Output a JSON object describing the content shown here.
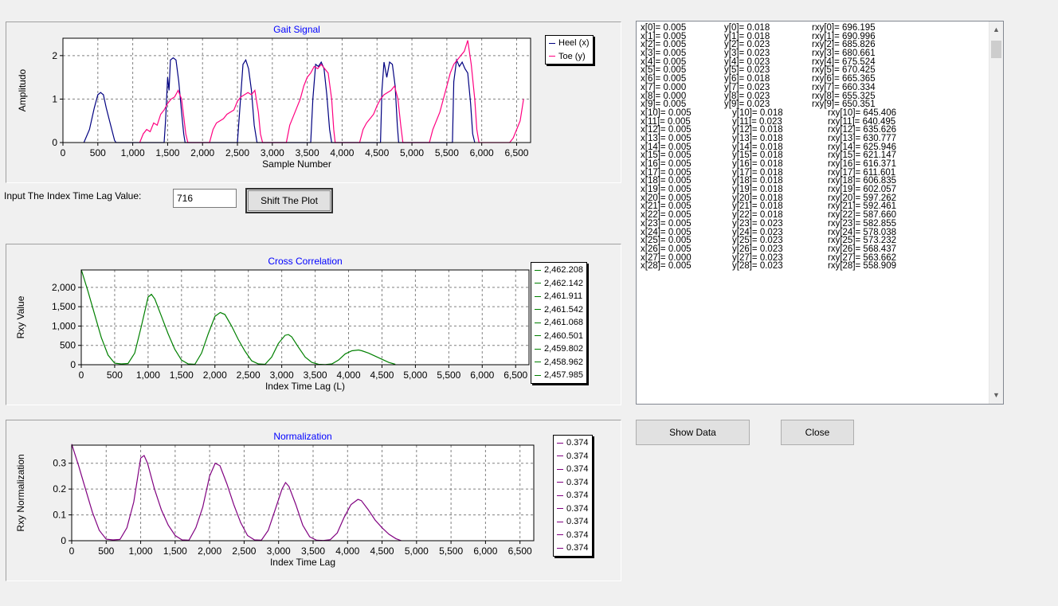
{
  "charts": [
    {
      "title": "Gait Signal",
      "xlabel": "Sample Number",
      "ylabel": "Amplitudo",
      "xticks": [
        "0",
        "500",
        "1,000",
        "1,500",
        "2,000",
        "2,500",
        "3,000",
        "3,500",
        "4,000",
        "4,500",
        "5,000",
        "5,500",
        "6,000",
        "6,500"
      ],
      "yticks": [
        "0",
        "1",
        "2"
      ],
      "legend": [
        {
          "label": "Heel (x)",
          "color": "#000080"
        },
        {
          "label": "Toe (y)",
          "color": "#ff0080"
        }
      ]
    },
    {
      "title": "Cross Correlation",
      "xlabel": "Index Time Lag (L)",
      "ylabel": "Rxy Value",
      "xticks": [
        "0",
        "500",
        "1,000",
        "1,500",
        "2,000",
        "2,500",
        "3,000",
        "3,500",
        "4,000",
        "4,500",
        "5,000",
        "5,500",
        "6,000",
        "6,500"
      ],
      "yticks": [
        "0",
        "500",
        "1,000",
        "1,500",
        "2,000"
      ],
      "legend_color": "#008000",
      "legend": [
        "2,462.208",
        "2,462.142",
        "2,461.911",
        "2,461.542",
        "2,461.068",
        "2,460.501",
        "2,459.802",
        "2,458.962",
        "2,457.985"
      ]
    },
    {
      "title": "Normalization",
      "xlabel": "Index Time Lag",
      "ylabel": "Rxy Normalization",
      "xticks": [
        "0",
        "500",
        "1,000",
        "1,500",
        "2,000",
        "2,500",
        "3,000",
        "3,500",
        "4,000",
        "4,500",
        "5,000",
        "5,500",
        "6,000",
        "6,500"
      ],
      "yticks": [
        "0",
        "0.1",
        "0.2",
        "0.3"
      ],
      "legend_color": "#800080",
      "legend": [
        "0.374",
        "0.374",
        "0.374",
        "0.374",
        "0.374",
        "0.374",
        "0.374",
        "0.374",
        "0.374"
      ]
    }
  ],
  "chart_data": [
    {
      "type": "line",
      "title": "Gait Signal",
      "xlabel": "Sample Number",
      "ylabel": "Amplitudo",
      "xlim": [
        0,
        6700
      ],
      "ylim": [
        0,
        2.4
      ],
      "grid": true,
      "legend_position": "top-right",
      "series": [
        {
          "name": "Heel (x)",
          "color": "#000080",
          "x": [
            300,
            380,
            450,
            500,
            540,
            580,
            620,
            660,
            700,
            740,
            760,
            790,
            1450,
            1470,
            1500,
            1520,
            1540,
            1580,
            1620,
            1660,
            1700,
            1730,
            1750,
            2500,
            2540,
            2580,
            2620,
            2660,
            2700,
            2740,
            2780,
            3550,
            3580,
            3620,
            3660,
            3700,
            3740,
            3780,
            3820,
            3850,
            4550,
            4570,
            4600,
            4640,
            4680,
            4720,
            4760,
            4790,
            4810,
            5580,
            5600,
            5640,
            5680,
            5720,
            5760,
            5800,
            5840,
            5870,
            5900
          ],
          "y": [
            0,
            0.3,
            0.8,
            1.1,
            1.15,
            1.1,
            0.8,
            0.55,
            0.3,
            0.05,
            0,
            0,
            0,
            0.5,
            1.5,
            1.2,
            1.9,
            1.95,
            1.9,
            1.4,
            0.7,
            0.2,
            0,
            0,
            0.9,
            1.8,
            1.9,
            1.7,
            1.2,
            0.4,
            0,
            0,
            1.0,
            1.8,
            1.75,
            1.85,
            1.7,
            1.1,
            0.3,
            0,
            0,
            1.2,
            1.85,
            1.5,
            1.85,
            1.8,
            1.3,
            0.4,
            0,
            0,
            1.4,
            1.9,
            1.75,
            1.85,
            1.7,
            1.6,
            0.9,
            0.2,
            0
          ]
        },
        {
          "name": "Toe (y)",
          "color": "#ff0080",
          "x": [
            1100,
            1150,
            1200,
            1250,
            1300,
            1350,
            1400,
            1450,
            1500,
            1550,
            1600,
            1650,
            1700,
            1730,
            1760,
            1790,
            2100,
            2150,
            2200,
            2250,
            2300,
            2350,
            2400,
            2450,
            2500,
            2550,
            2600,
            2650,
            2700,
            2750,
            2800,
            2830,
            2860,
            3200,
            3250,
            3300,
            3350,
            3400,
            3450,
            3500,
            3550,
            3600,
            3650,
            3700,
            3750,
            3800,
            3850,
            3880,
            3900,
            4250,
            4300,
            4350,
            4400,
            4450,
            4500,
            4550,
            4600,
            4650,
            4700,
            4750,
            4800,
            4840,
            4870,
            5250,
            5300,
            5350,
            5400,
            5450,
            5500,
            5550,
            5600,
            5650,
            5700,
            5750,
            5800,
            5850,
            5900,
            5930,
            5960,
            6400,
            6450,
            6500,
            6550,
            6600
          ],
          "y": [
            0,
            0.2,
            0.3,
            0.25,
            0.45,
            0.4,
            0.65,
            0.75,
            0.9,
            1.0,
            1.05,
            1.2,
            1.0,
            0.6,
            0.2,
            0,
            0,
            0.3,
            0.45,
            0.5,
            0.55,
            0.65,
            0.7,
            0.75,
            0.95,
            1.05,
            1.1,
            1.15,
            1.1,
            1.2,
            0.7,
            0.2,
            0,
            0,
            0.4,
            0.6,
            0.8,
            1.0,
            1.3,
            1.5,
            1.6,
            1.75,
            1.7,
            1.8,
            1.7,
            1.6,
            1.0,
            0.3,
            0,
            0,
            0.3,
            0.45,
            0.55,
            0.65,
            0.85,
            1.0,
            1.1,
            1.15,
            1.2,
            1.3,
            1.0,
            0.4,
            0,
            0,
            0.3,
            0.5,
            0.7,
            1.0,
            1.3,
            1.6,
            1.8,
            1.9,
            2.0,
            2.1,
            2.35,
            1.8,
            1.0,
            0.3,
            0,
            0,
            0.1,
            0.3,
            0.5,
            1.0
          ]
        }
      ]
    },
    {
      "type": "line",
      "title": "Cross Correlation",
      "xlabel": "Index Time Lag (L)",
      "ylabel": "Rxy Value",
      "xlim": [
        0,
        6700
      ],
      "ylim": [
        0,
        2450
      ],
      "grid": true,
      "legend_position": "right",
      "series": [
        {
          "color": "#008000",
          "x": [
            0,
            100,
            200,
            300,
            400,
            500,
            600,
            700,
            800,
            900,
            1000,
            1050,
            1100,
            1200,
            1300,
            1400,
            1500,
            1600,
            1700,
            1800,
            1900,
            2000,
            2080,
            2150,
            2250,
            2350,
            2450,
            2550,
            2650,
            2750,
            2850,
            2950,
            3050,
            3100,
            3150,
            3250,
            3350,
            3450,
            3550,
            3650,
            3750,
            3850,
            3950,
            4050,
            4150,
            4200,
            4300,
            4400,
            4500,
            4600,
            4700
          ],
          "y": [
            2460,
            1900,
            1300,
            700,
            250,
            40,
            20,
            30,
            300,
            1000,
            1750,
            1820,
            1700,
            1250,
            800,
            400,
            120,
            20,
            10,
            300,
            800,
            1250,
            1350,
            1300,
            1000,
            650,
            350,
            100,
            20,
            10,
            200,
            550,
            760,
            780,
            720,
            450,
            200,
            60,
            10,
            5,
            20,
            120,
            280,
            360,
            380,
            360,
            300,
            220,
            140,
            60,
            10
          ]
        }
      ]
    },
    {
      "type": "line",
      "title": "Normalization",
      "xlabel": "Index Time Lag",
      "ylabel": "Rxy Normalization",
      "xlim": [
        0,
        6700
      ],
      "ylim": [
        0,
        0.37
      ],
      "grid": true,
      "legend_position": "right",
      "series": [
        {
          "color": "#800080",
          "x": [
            0,
            100,
            200,
            300,
            400,
            500,
            600,
            700,
            800,
            900,
            1000,
            1050,
            1100,
            1200,
            1300,
            1400,
            1500,
            1600,
            1700,
            1800,
            1900,
            2000,
            2080,
            2150,
            2250,
            2350,
            2450,
            2550,
            2650,
            2750,
            2850,
            2950,
            3050,
            3100,
            3150,
            3250,
            3350,
            3450,
            3550,
            3650,
            3750,
            3850,
            3950,
            4050,
            4150,
            4200,
            4300,
            4400,
            4500,
            4600,
            4700,
            4780
          ],
          "y": [
            0.374,
            0.29,
            0.2,
            0.11,
            0.04,
            0.006,
            0.003,
            0.005,
            0.05,
            0.15,
            0.32,
            0.33,
            0.3,
            0.2,
            0.12,
            0.06,
            0.02,
            0.003,
            0.002,
            0.05,
            0.13,
            0.25,
            0.3,
            0.29,
            0.22,
            0.14,
            0.07,
            0.02,
            0.003,
            0.002,
            0.04,
            0.12,
            0.2,
            0.225,
            0.21,
            0.14,
            0.06,
            0.015,
            0.002,
            0.001,
            0.004,
            0.03,
            0.09,
            0.14,
            0.16,
            0.155,
            0.12,
            0.08,
            0.05,
            0.025,
            0.008,
            0
          ]
        }
      ]
    }
  ],
  "lag_label": "Input The Index Time Lag Value:",
  "lag_value": "716",
  "shift_button": "Shift The Plot",
  "show_data_button": "Show Data",
  "close_button": "Close",
  "list_rows": [
    {
      "x": "x[0]= 0.005",
      "y": "y[0]= 0.018",
      "r": "rxy[0]= 696.195"
    },
    {
      "x": "x[1]= 0.005",
      "y": "y[1]= 0.018",
      "r": "rxy[1]= 690.996"
    },
    {
      "x": "x[2]= 0.005",
      "y": "y[2]= 0.023",
      "r": "rxy[2]= 685.826"
    },
    {
      "x": "x[3]= 0.005",
      "y": "y[3]= 0.023",
      "r": "rxy[3]= 680.661"
    },
    {
      "x": "x[4]= 0.005",
      "y": "y[4]= 0.023",
      "r": "rxy[4]= 675.524"
    },
    {
      "x": "x[5]= 0.005",
      "y": "y[5]= 0.023",
      "r": "rxy[5]= 670.425"
    },
    {
      "x": "x[6]= 0.005",
      "y": "y[6]= 0.018",
      "r": "rxy[6]= 665.365"
    },
    {
      "x": "x[7]= 0.000",
      "y": "y[7]= 0.023",
      "r": "rxy[7]= 660.334"
    },
    {
      "x": "x[8]= 0.000",
      "y": "y[8]= 0.023",
      "r": "rxy[8]= 655.325"
    },
    {
      "x": "x[9]= 0.005",
      "y": "y[9]= 0.023",
      "r": "rxy[9]= 650.351"
    },
    {
      "x": "x[10]= 0.005",
      "y": "y[10]= 0.018",
      "r": "rxy[10]= 645.406"
    },
    {
      "x": "x[11]= 0.005",
      "y": "y[11]= 0.023",
      "r": "rxy[11]= 640.495"
    },
    {
      "x": "x[12]= 0.005",
      "y": "y[12]= 0.018",
      "r": "rxy[12]= 635.626"
    },
    {
      "x": "x[13]= 0.005",
      "y": "y[13]= 0.018",
      "r": "rxy[13]= 630.777"
    },
    {
      "x": "x[14]= 0.005",
      "y": "y[14]= 0.018",
      "r": "rxy[14]= 625.946"
    },
    {
      "x": "x[15]= 0.005",
      "y": "y[15]= 0.018",
      "r": "rxy[15]= 621.147"
    },
    {
      "x": "x[16]= 0.005",
      "y": "y[16]= 0.018",
      "r": "rxy[16]= 616.371"
    },
    {
      "x": "x[17]= 0.005",
      "y": "y[17]= 0.018",
      "r": "rxy[17]= 611.601"
    },
    {
      "x": "x[18]= 0.005",
      "y": "y[18]= 0.018",
      "r": "rxy[18]= 606.835"
    },
    {
      "x": "x[19]= 0.005",
      "y": "y[19]= 0.018",
      "r": "rxy[19]= 602.057"
    },
    {
      "x": "x[20]= 0.005",
      "y": "y[20]= 0.018",
      "r": "rxy[20]= 597.262"
    },
    {
      "x": "x[21]= 0.005",
      "y": "y[21]= 0.018",
      "r": "rxy[21]= 592.461"
    },
    {
      "x": "x[22]= 0.005",
      "y": "y[22]= 0.018",
      "r": "rxy[22]= 587.660"
    },
    {
      "x": "x[23]= 0.005",
      "y": "y[23]= 0.023",
      "r": "rxy[23]= 582.855"
    },
    {
      "x": "x[24]= 0.005",
      "y": "y[24]= 0.023",
      "r": "rxy[24]= 578.038"
    },
    {
      "x": "x[25]= 0.005",
      "y": "y[25]= 0.023",
      "r": "rxy[25]= 573.232"
    },
    {
      "x": "x[26]= 0.005",
      "y": "y[26]= 0.023",
      "r": "rxy[26]= 568.437"
    },
    {
      "x": "x[27]= 0.000",
      "y": "y[27]= 0.023",
      "r": "rxy[27]= 563.662"
    },
    {
      "x": "x[28]= 0.005",
      "y": "y[28]= 0.023",
      "r": "rxy[28]= 558.909"
    }
  ]
}
